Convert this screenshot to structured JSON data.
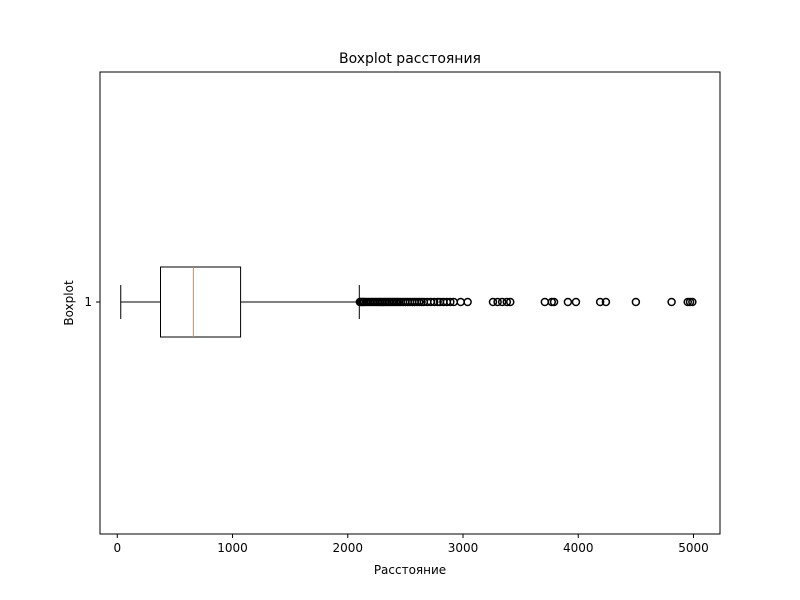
{
  "chart_data": {
    "type": "boxplot",
    "orientation": "horizontal",
    "title": "Boxplot расстояния",
    "xlabel": "Расстояние",
    "ylabel": "Boxplot",
    "xlim": [
      -150,
      5230
    ],
    "xticks": [
      0,
      1000,
      2000,
      3000,
      4000,
      5000
    ],
    "xtick_labels": [
      "0",
      "1000",
      "2000",
      "3000",
      "4000",
      "5000"
    ],
    "ytick_labels": [
      "1"
    ],
    "grid": false,
    "series": [
      {
        "category": "1",
        "whisker_low": 30,
        "q1": 375,
        "median": 660,
        "q3": 1070,
        "whisker_high": 2100,
        "outliers": [
          2105,
          2115,
          2125,
          2135,
          2145,
          2160,
          2175,
          2190,
          2205,
          2220,
          2235,
          2250,
          2265,
          2280,
          2295,
          2310,
          2325,
          2340,
          2355,
          2370,
          2385,
          2400,
          2415,
          2430,
          2445,
          2460,
          2480,
          2500,
          2520,
          2540,
          2560,
          2580,
          2600,
          2620,
          2640,
          2660,
          2690,
          2720,
          2750,
          2780,
          2800,
          2830,
          2860,
          2890,
          2920,
          2980,
          3040,
          3260,
          3300,
          3340,
          3380,
          3410,
          3710,
          3770,
          3790,
          3910,
          3980,
          4190,
          4240,
          4500,
          4810,
          4950,
          4970,
          4990
        ]
      }
    ],
    "colors": {
      "box": "#000000",
      "median": "#ff7f0e",
      "outlier": "#000000"
    }
  }
}
